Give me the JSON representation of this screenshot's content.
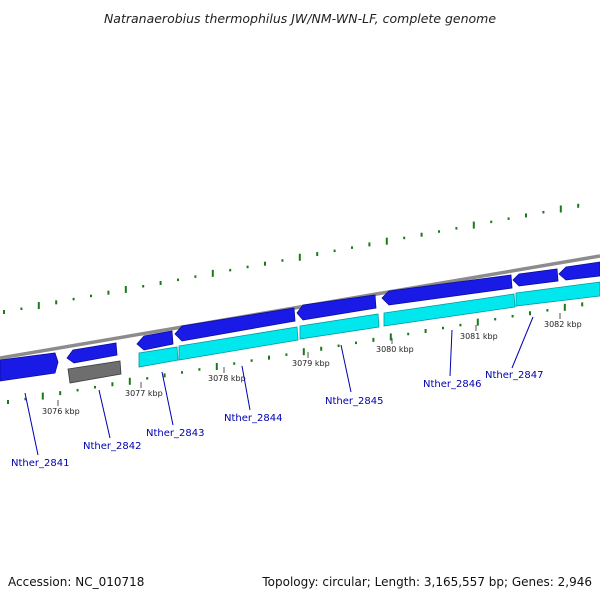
{
  "title": "Natranaerobius thermophilus JW/NM-WN-LF, complete genome",
  "footer": {
    "accession": "Accession: NC_010718",
    "summary": "Topology: circular; Length: 3,165,557 bp; Genes: 2,946"
  },
  "colors": {
    "forward_gene": "#1a1ae6",
    "reverse_gene": "#00e8ee",
    "pseudogene": "#6e6e6e",
    "backbone": "#8c8c8c",
    "gc_tick": "#1a7a1a",
    "label": "#0000b0"
  },
  "ticks": [
    {
      "label": "3076 kbp"
    },
    {
      "label": "3077 kbp"
    },
    {
      "label": "3078 kbp"
    },
    {
      "label": "3079 kbp"
    },
    {
      "label": "3080 kbp"
    },
    {
      "label": "3081 kbp"
    },
    {
      "label": "3082 kbp"
    }
  ],
  "genes": [
    {
      "label": "Nther_2841"
    },
    {
      "label": "Nther_2842"
    },
    {
      "label": "Nther_2843"
    },
    {
      "label": "Nther_2844"
    },
    {
      "label": "Nther_2845"
    },
    {
      "label": "Nther_2846"
    },
    {
      "label": "Nther_2847"
    }
  ]
}
